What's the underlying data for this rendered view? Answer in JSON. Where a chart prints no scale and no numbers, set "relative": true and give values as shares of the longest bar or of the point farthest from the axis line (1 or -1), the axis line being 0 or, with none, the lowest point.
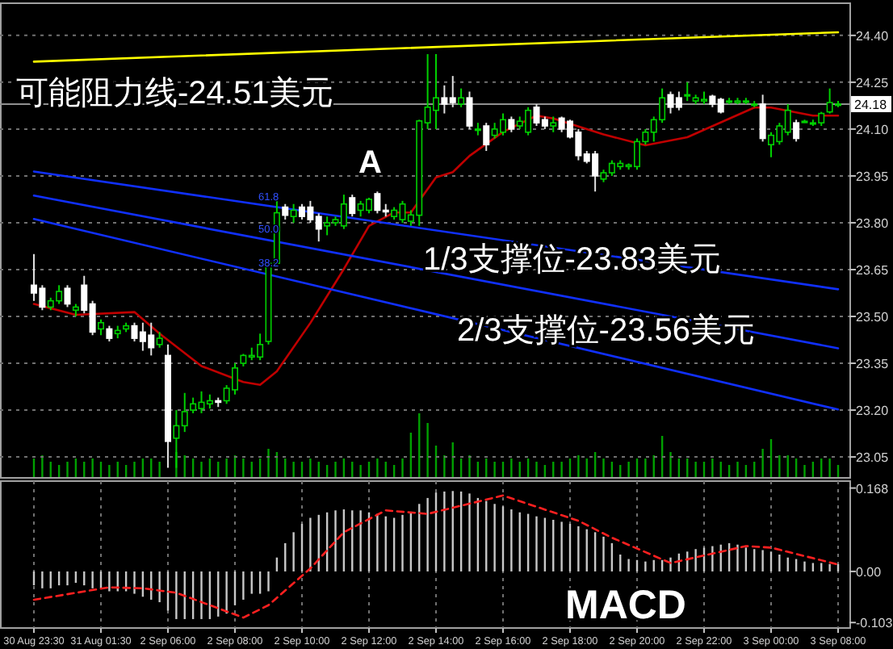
{
  "chart_data": [
    {
      "type": "candlestick",
      "categories": [
        null,
        null,
        null,
        null,
        null,
        null,
        null,
        null,
        null,
        null,
        null,
        null,
        null,
        null,
        null,
        null,
        null,
        null,
        null,
        null,
        null,
        null,
        null,
        null,
        null,
        null,
        null,
        null,
        null,
        null,
        null,
        null,
        null,
        null,
        null,
        null,
        null,
        null,
        null,
        null,
        null,
        null,
        null,
        null,
        null,
        null,
        null,
        null,
        null,
        null,
        null,
        null,
        null,
        null,
        null,
        null,
        null,
        null,
        null,
        null,
        null,
        null,
        null,
        null,
        null,
        null,
        null,
        null,
        null,
        null,
        null,
        null,
        null,
        null,
        null,
        null,
        null,
        null,
        null,
        null,
        null,
        null,
        null,
        null,
        null,
        null,
        null,
        null,
        null,
        null,
        null,
        null,
        null,
        null,
        null,
        null,
        null
      ],
      "ohlc": [
        [
          23.6,
          23.7,
          23.55,
          23.575
        ],
        [
          23.59,
          23.6,
          23.52,
          23.53
        ],
        [
          23.53,
          23.56,
          23.52,
          23.55
        ],
        [
          23.55,
          23.6,
          23.54,
          23.58
        ],
        [
          23.59,
          23.6,
          23.53,
          23.54
        ],
        [
          23.52,
          23.54,
          23.5,
          23.53
        ],
        [
          23.6,
          23.63,
          23.51,
          23.52
        ],
        [
          23.54,
          23.55,
          23.44,
          23.45
        ],
        [
          23.46,
          23.49,
          23.44,
          23.48
        ],
        [
          23.46,
          23.47,
          23.42,
          23.43
        ],
        [
          23.445,
          23.47,
          23.43,
          23.455
        ],
        [
          23.46,
          23.48,
          23.45,
          23.47
        ],
        [
          23.47,
          23.48,
          23.42,
          23.43
        ],
        [
          23.45,
          23.48,
          23.39,
          23.42
        ],
        [
          23.44,
          23.48,
          23.375,
          23.4
        ],
        [
          23.41,
          23.45,
          23.4,
          23.43
        ],
        [
          23.375,
          23.41,
          23.015,
          23.1
        ],
        [
          23.11,
          23.2,
          23.015,
          23.15
        ],
        [
          23.15,
          23.255,
          23.13,
          23.195
        ],
        [
          23.2,
          23.24,
          23.19,
          23.22
        ],
        [
          23.205,
          23.26,
          23.19,
          23.225
        ],
        [
          23.22,
          23.25,
          23.205,
          23.23
        ],
        [
          23.23,
          23.24,
          23.21,
          23.225
        ],
        [
          23.23,
          23.28,
          23.22,
          23.27
        ],
        [
          23.265,
          23.35,
          23.25,
          23.335
        ],
        [
          23.35,
          23.38,
          23.34,
          23.375
        ],
        [
          23.37,
          23.4,
          23.36,
          23.375
        ],
        [
          23.37,
          23.445,
          23.36,
          23.41
        ],
        [
          23.42,
          23.675,
          23.41,
          23.67
        ],
        [
          23.67,
          23.876,
          23.66,
          23.832
        ],
        [
          23.85,
          23.86,
          23.81,
          23.824
        ],
        [
          23.82,
          23.86,
          23.8,
          23.84
        ],
        [
          23.85,
          23.86,
          23.81,
          23.82
        ],
        [
          23.85,
          23.87,
          23.8,
          23.81
        ],
        [
          23.82,
          23.83,
          23.74,
          23.78
        ],
        [
          23.79,
          23.82,
          23.76,
          23.8
        ],
        [
          23.8,
          23.82,
          23.79,
          23.81
        ],
        [
          23.79,
          23.89,
          23.78,
          23.86
        ],
        [
          23.88,
          23.89,
          23.82,
          23.83
        ],
        [
          23.84,
          23.87,
          23.82,
          23.86
        ],
        [
          23.84,
          23.88,
          23.83,
          23.875
        ],
        [
          23.893,
          23.9,
          23.83,
          23.84
        ],
        [
          23.84,
          23.86,
          23.82,
          23.835
        ],
        [
          23.82,
          23.85,
          23.81,
          23.84
        ],
        [
          23.81,
          23.87,
          23.8,
          23.86
        ],
        [
          23.805,
          23.84,
          23.79,
          23.825
        ],
        [
          23.824,
          24.13,
          23.79,
          24.126
        ],
        [
          24.12,
          24.34,
          24.1,
          24.17
        ],
        [
          24.16,
          24.34,
          24.1,
          24.2
        ],
        [
          24.2,
          24.24,
          24.15,
          24.18
        ],
        [
          24.2,
          24.27,
          24.17,
          24.185
        ],
        [
          24.18,
          24.23,
          24.17,
          24.2
        ],
        [
          24.2,
          24.22,
          24.1,
          24.11
        ],
        [
          24.1,
          24.12,
          24.08,
          24.1
        ],
        [
          24.11,
          24.12,
          24.03,
          24.05
        ],
        [
          24.08,
          24.12,
          24.07,
          24.1
        ],
        [
          24.09,
          24.15,
          24.08,
          24.13
        ],
        [
          24.13,
          24.14,
          24.09,
          24.1
        ],
        [
          24.11,
          24.14,
          24.1,
          24.125
        ],
        [
          24.09,
          24.17,
          24.08,
          24.16
        ],
        [
          24.17,
          24.18,
          24.11,
          24.12
        ],
        [
          24.13,
          24.14,
          24.1,
          24.11
        ],
        [
          24.11,
          24.14,
          24.09,
          24.12
        ],
        [
          24.135,
          24.14,
          24.09,
          24.1
        ],
        [
          24.125,
          24.13,
          24.07,
          24.075
        ],
        [
          24.09,
          24.1,
          24.0,
          24.015
        ],
        [
          24.02,
          24.03,
          23.99,
          23.997
        ],
        [
          24.02,
          24.03,
          23.9,
          23.95
        ],
        [
          23.94,
          23.97,
          23.93,
          23.96
        ],
        [
          23.96,
          24.0,
          23.95,
          23.99
        ],
        [
          23.98,
          24.0,
          23.97,
          23.99
        ],
        [
          23.98,
          23.99,
          23.97,
          23.985
        ],
        [
          23.98,
          24.07,
          23.97,
          24.06
        ],
        [
          24.06,
          24.1,
          24.05,
          24.09
        ],
        [
          24.09,
          24.14,
          24.06,
          24.13
        ],
        [
          24.13,
          24.23,
          24.12,
          24.2
        ],
        [
          24.21,
          24.22,
          24.15,
          24.17
        ],
        [
          24.2,
          24.22,
          24.16,
          24.17
        ],
        [
          24.21,
          24.25,
          24.19,
          24.21
        ],
        [
          24.19,
          24.21,
          24.18,
          24.2
        ],
        [
          24.19,
          24.22,
          24.18,
          24.195
        ],
        [
          24.205,
          24.21,
          24.17,
          24.18
        ],
        [
          24.195,
          24.2,
          24.15,
          24.155
        ],
        [
          24.19,
          24.2,
          24.18,
          24.19
        ],
        [
          24.185,
          24.2,
          24.18,
          24.19
        ],
        [
          24.19,
          24.2,
          24.18,
          24.19
        ],
        [
          24.18,
          24.19,
          24.17,
          24.18
        ],
        [
          24.18,
          24.21,
          24.06,
          24.07
        ],
        [
          24.05,
          24.09,
          24.01,
          24.08
        ],
        [
          24.06,
          24.12,
          24.05,
          24.11
        ],
        [
          24.09,
          24.18,
          24.08,
          24.16
        ],
        [
          24.12,
          24.13,
          24.06,
          24.07
        ],
        [
          24.125,
          24.13,
          24.12,
          24.125
        ],
        [
          24.12,
          24.13,
          24.11,
          24.12
        ],
        [
          24.12,
          24.155,
          24.11,
          24.15
        ],
        [
          24.155,
          24.23,
          24.15,
          24.185
        ],
        [
          24.18,
          24.19,
          24.17,
          24.18
        ]
      ],
      "ylim": [
        22.983,
        24.503
      ],
      "yticks": [
        {
          "value": 24.4,
          "label": "24.40"
        },
        {
          "value": 24.25,
          "label": "24.25"
        },
        {
          "value": 24.1,
          "label": "24.10"
        },
        {
          "value": 23.95,
          "label": "23.95"
        },
        {
          "value": 23.8,
          "label": "23.80"
        },
        {
          "value": 23.65,
          "label": "23.65"
        },
        {
          "value": 23.5,
          "label": "23.50"
        },
        {
          "value": 23.35,
          "label": "23.35"
        },
        {
          "value": 23.2,
          "label": "23.20"
        },
        {
          "value": 23.05,
          "label": "23.05"
        }
      ],
      "grid": true,
      "tick_labels": "y",
      "series": [
        {
          "type": "line",
          "color": "#c00000",
          "values": [
            23.54,
            null,
            null,
            null,
            null,
            23.505,
            null,
            null,
            null,
            null,
            null,
            null,
            23.514,
            null,
            null,
            23.445,
            null,
            null,
            null,
            null,
            23.341,
            null,
            null,
            null,
            null,
            23.29,
            null,
            23.281,
            null,
            23.324,
            null,
            null,
            null,
            23.479,
            null,
            null,
            null,
            23.652,
            null,
            null,
            23.79,
            null,
            null,
            23.833,
            null,
            23.833,
            null,
            null,
            23.945,
            null,
            23.962,
            null,
            24.014,
            null,
            null,
            null,
            24.091,
            null,
            null,
            null,
            24.143,
            null,
            24.134,
            null,
            null,
            null,
            null,
            null,
            24.083,
            null,
            null,
            null,
            null,
            24.048,
            null,
            null,
            null,
            null,
            24.074,
            null,
            null,
            null,
            null,
            null,
            null,
            null,
            24.169,
            null,
            24.169,
            null,
            null,
            null,
            null,
            24.143,
            null,
            null,
            24.143
          ]
        },
        {
          "type": "line",
          "color": "#ffff00",
          "values": [
            24.316,
            null,
            null,
            null,
            null,
            null,
            null,
            null,
            null,
            null,
            null,
            null,
            null,
            null,
            null,
            null,
            null,
            null,
            null,
            null,
            null,
            null,
            null,
            null,
            null,
            null,
            null,
            null,
            null,
            null,
            null,
            null,
            null,
            null,
            null,
            null,
            null,
            null,
            null,
            null,
            null,
            null,
            null,
            null,
            null,
            null,
            null,
            null,
            null,
            null,
            null,
            null,
            null,
            null,
            null,
            null,
            null,
            null,
            null,
            null,
            null,
            null,
            null,
            null,
            null,
            null,
            null,
            null,
            null,
            null,
            null,
            null,
            null,
            null,
            null,
            null,
            null,
            null,
            null,
            null,
            null,
            null,
            null,
            null,
            null,
            null,
            null,
            null,
            null,
            null,
            null,
            null,
            null,
            null,
            null,
            null,
            24.41
          ]
        },
        {
          "type": "line",
          "color": "#1030ff",
          "values": [
            23.964,
            null,
            null,
            null,
            null,
            null,
            null,
            null,
            null,
            null,
            null,
            null,
            null,
            null,
            null,
            null,
            null,
            null,
            null,
            null,
            null,
            null,
            null,
            null,
            null,
            null,
            null,
            null,
            null,
            null,
            null,
            null,
            null,
            null,
            null,
            null,
            null,
            null,
            null,
            null,
            null,
            null,
            null,
            null,
            null,
            null,
            null,
            null,
            null,
            null,
            null,
            null,
            null,
            null,
            null,
            null,
            null,
            null,
            null,
            null,
            null,
            null,
            null,
            null,
            null,
            null,
            null,
            null,
            null,
            null,
            null,
            null,
            null,
            null,
            null,
            null,
            null,
            null,
            null,
            null,
            null,
            null,
            null,
            null,
            null,
            null,
            null,
            null,
            null,
            null,
            null,
            null,
            null,
            null,
            null,
            null,
            23.587
          ]
        },
        {
          "type": "line",
          "color": "#1030ff",
          "values": [
            23.887,
            null,
            null,
            null,
            null,
            null,
            null,
            null,
            null,
            null,
            null,
            null,
            null,
            null,
            null,
            null,
            null,
            null,
            null,
            null,
            null,
            null,
            null,
            null,
            null,
            null,
            null,
            null,
            null,
            null,
            null,
            null,
            null,
            null,
            null,
            null,
            null,
            null,
            null,
            null,
            null,
            null,
            null,
            null,
            null,
            null,
            null,
            null,
            null,
            null,
            null,
            null,
            null,
            null,
            null,
            null,
            null,
            null,
            null,
            null,
            null,
            null,
            null,
            null,
            null,
            null,
            null,
            null,
            null,
            null,
            null,
            null,
            null,
            null,
            null,
            null,
            null,
            null,
            null,
            null,
            null,
            null,
            null,
            null,
            null,
            null,
            null,
            null,
            null,
            null,
            null,
            null,
            null,
            null,
            null,
            null,
            23.398
          ]
        },
        {
          "type": "line",
          "color": "#1030ff",
          "values": [
            23.812,
            null,
            null,
            null,
            null,
            null,
            null,
            null,
            null,
            null,
            null,
            null,
            null,
            null,
            null,
            null,
            null,
            null,
            null,
            null,
            null,
            null,
            null,
            null,
            null,
            null,
            null,
            null,
            null,
            null,
            null,
            null,
            null,
            null,
            null,
            null,
            null,
            null,
            null,
            null,
            null,
            null,
            null,
            null,
            null,
            null,
            null,
            null,
            null,
            null,
            null,
            null,
            null,
            null,
            null,
            null,
            null,
            null,
            null,
            null,
            null,
            null,
            null,
            null,
            null,
            null,
            null,
            null,
            null,
            null,
            null,
            null,
            null,
            null,
            null,
            null,
            null,
            null,
            null,
            null,
            null,
            null,
            null,
            null,
            null,
            null,
            null,
            null,
            null,
            null,
            null,
            null,
            null,
            null,
            null,
            null,
            23.202
          ]
        }
      ],
      "ref_lines": [
        {
          "axis": "y",
          "value": 24.18,
          "label": "24.18",
          "color": "#909090"
        }
      ],
      "annotations": [
        "可能阻力线-24.51美元",
        "A",
        "1/3支撑位-23.83美元",
        "2/3支撑位-23.56美元",
        "61.8",
        "50.0",
        "38.2"
      ]
    },
    {
      "type": "bar",
      "relative": true,
      "color": "#00a000",
      "tick_labels": false,
      "categories": [
        null,
        null,
        null,
        null,
        null,
        null,
        null,
        null,
        null,
        null,
        null,
        null,
        null,
        null,
        null,
        null,
        null,
        null,
        null,
        null,
        null,
        null,
        null,
        null,
        null,
        null,
        null,
        null,
        null,
        null,
        null,
        null,
        null,
        null,
        null,
        null,
        null,
        null,
        null,
        null,
        null,
        null,
        null,
        null,
        null,
        null,
        null,
        null,
        null,
        null,
        null,
        null,
        null,
        null,
        null,
        null,
        null,
        null,
        null,
        null,
        null,
        null,
        null,
        null,
        null,
        null,
        null,
        null,
        null,
        null,
        null,
        null,
        null,
        null,
        null,
        null,
        null,
        null,
        null,
        null,
        null,
        null,
        null,
        null,
        null,
        null,
        null,
        null,
        null,
        null,
        null,
        null,
        null,
        null,
        null,
        null,
        null
      ],
      "values": [
        0.3,
        0.35,
        0.25,
        0.2,
        0.25,
        0.3,
        0.25,
        0.3,
        0.25,
        0.2,
        0.25,
        0.2,
        0.25,
        0.3,
        0.3,
        0.25,
        null,
        0.4,
        0.35,
        0.3,
        0.25,
        0.3,
        0.25,
        0.3,
        0.35,
        0.3,
        0.25,
        0.3,
        0.45,
        0.4,
        0.3,
        0.25,
        0.25,
        0.3,
        0.25,
        0.2,
        0.25,
        0.3,
        0.25,
        0.2,
        0.25,
        0.3,
        0.25,
        0.2,
        0.3,
        0.7,
        1,
        0.85,
        0.5,
        0.35,
        0.55,
        0.3,
        0.35,
        0.25,
        0.3,
        0.25,
        0.25,
        0.3,
        0.25,
        0.3,
        0.25,
        0.2,
        0.25,
        0.25,
        0.3,
        0.35,
        0.3,
        0.4,
        0.3,
        0.25,
        0.2,
        0.25,
        0.3,
        0.3,
        0.35,
        0.65,
        0.4,
        0.3,
        0.3,
        0.25,
        0.25,
        0.3,
        0.25,
        0.2,
        0.25,
        0.2,
        0.25,
        0.45,
        0.6,
        0.35,
        0.35,
        0.3,
        0.2,
        0.25,
        0.3,
        0.3,
        0.2
      ]
    },
    {
      "type": "bar",
      "grid": "x",
      "categories": [
        "30 Aug 23:30",
        null,
        null,
        null,
        null,
        null,
        null,
        null,
        "31 Aug 01:30",
        null,
        null,
        null,
        null,
        null,
        null,
        null,
        "2 Sep 06:00",
        null,
        null,
        null,
        null,
        null,
        null,
        null,
        "2 Sep 08:00",
        null,
        null,
        null,
        null,
        null,
        null,
        null,
        "2 Sep 10:00",
        null,
        null,
        null,
        null,
        null,
        null,
        null,
        "2 Sep 12:00",
        null,
        null,
        null,
        null,
        null,
        null,
        null,
        "2 Sep 14:00",
        null,
        null,
        null,
        null,
        null,
        null,
        null,
        "2 Sep 16:00",
        null,
        null,
        null,
        null,
        null,
        null,
        null,
        "2 Sep 18:00",
        null,
        null,
        null,
        null,
        null,
        null,
        null,
        "2 Sep 20:00",
        null,
        null,
        null,
        null,
        null,
        null,
        null,
        "2 Sep 22:00",
        null,
        null,
        null,
        null,
        null,
        null,
        null,
        "3 Sep 00:00",
        null,
        null,
        null,
        null,
        null,
        null,
        null,
        "3 Sep 08:00"
      ],
      "ylim": [
        -0.114,
        0.182
      ],
      "yticks": [
        {
          "value": 0.168,
          "label": "0.168"
        },
        {
          "value": 0,
          "label": "0.00"
        },
        {
          "value": -0.103,
          "label": "-0.103"
        }
      ],
      "series": [
        {
          "type": "bar",
          "color": "#c8c8c8",
          "values": [
            -0.028,
            -0.034,
            -0.034,
            -0.028,
            -0.028,
            -0.023,
            -0.028,
            -0.034,
            -0.034,
            -0.04,
            -0.04,
            -0.04,
            -0.045,
            -0.051,
            -0.057,
            -0.062,
            -0.079,
            -0.096,
            -0.096,
            -0.096,
            -0.096,
            -0.096,
            -0.091,
            -0.085,
            -0.068,
            -0.057,
            -0.045,
            -0.045,
            -0.04,
            0.028,
            0.057,
            0.079,
            0.096,
            0.108,
            0.114,
            0.119,
            0.123,
            0.125,
            0.123,
            0.123,
            0.119,
            0.116,
            0.111,
            0.108,
            0.114,
            0.119,
            0.136,
            0.148,
            0.159,
            0.161,
            0.162,
            0.161,
            0.157,
            0.148,
            0.142,
            0.136,
            0.131,
            0.125,
            0.119,
            0.116,
            0.111,
            0.108,
            0.104,
            0.1,
            0.096,
            0.091,
            0.085,
            0.079,
            0.07,
            0.057,
            0.034,
            0.025,
            0.023,
            0.02,
            0.023,
            0.023,
            0.028,
            0.036,
            0.04,
            0.045,
            0.048,
            0.051,
            0.054,
            0.057,
            0.054,
            0.048,
            0.045,
            0.043,
            0.04,
            0.034,
            0.028,
            0.025,
            0.02,
            0.017,
            0.017,
            0.015,
            0.015
          ]
        },
        {
          "type": "line",
          "color": "#ff2020",
          "line_style": "dashed",
          "values": [
            -0.057,
            null,
            null,
            null,
            null,
            null,
            null,
            null,
            null,
            -0.032,
            null,
            null,
            null,
            -0.034,
            null,
            null,
            null,
            -0.043,
            null,
            null,
            null,
            null,
            null,
            null,
            null,
            -0.093,
            null,
            null,
            -0.068,
            null,
            null,
            null,
            null,
            0.006,
            null,
            null,
            null,
            0.079,
            null,
            null,
            null,
            null,
            0.123,
            null,
            null,
            null,
            null,
            0.116,
            null,
            null,
            null,
            null,
            null,
            null,
            null,
            null,
            0.153,
            null,
            null,
            null,
            null,
            null,
            null,
            null,
            null,
            0.102,
            null,
            null,
            null,
            0.068,
            null,
            null,
            null,
            null,
            null,
            null,
            0.017,
            null,
            null,
            null,
            null,
            null,
            null,
            null,
            null,
            0.051,
            null,
            null,
            0.048,
            null,
            null,
            null,
            null,
            null,
            null,
            null,
            0.014
          ]
        }
      ],
      "annotations": [
        "MACD"
      ]
    }
  ]
}
